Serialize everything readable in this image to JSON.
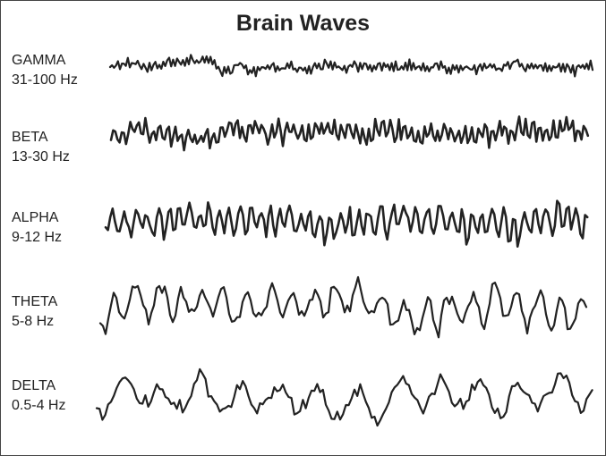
{
  "title": "Brain Waves",
  "line_color": "#222222",
  "bands": [
    {
      "name": "GAMMA",
      "range": "31-100 Hz"
    },
    {
      "name": "BETA",
      "range": "13-30 Hz"
    },
    {
      "name": "ALPHA",
      "range": "9-12 Hz"
    },
    {
      "name": "THETA",
      "range": "5-8 Hz"
    },
    {
      "name": "DELTA",
      "range": "0.5-4 Hz"
    }
  ]
}
